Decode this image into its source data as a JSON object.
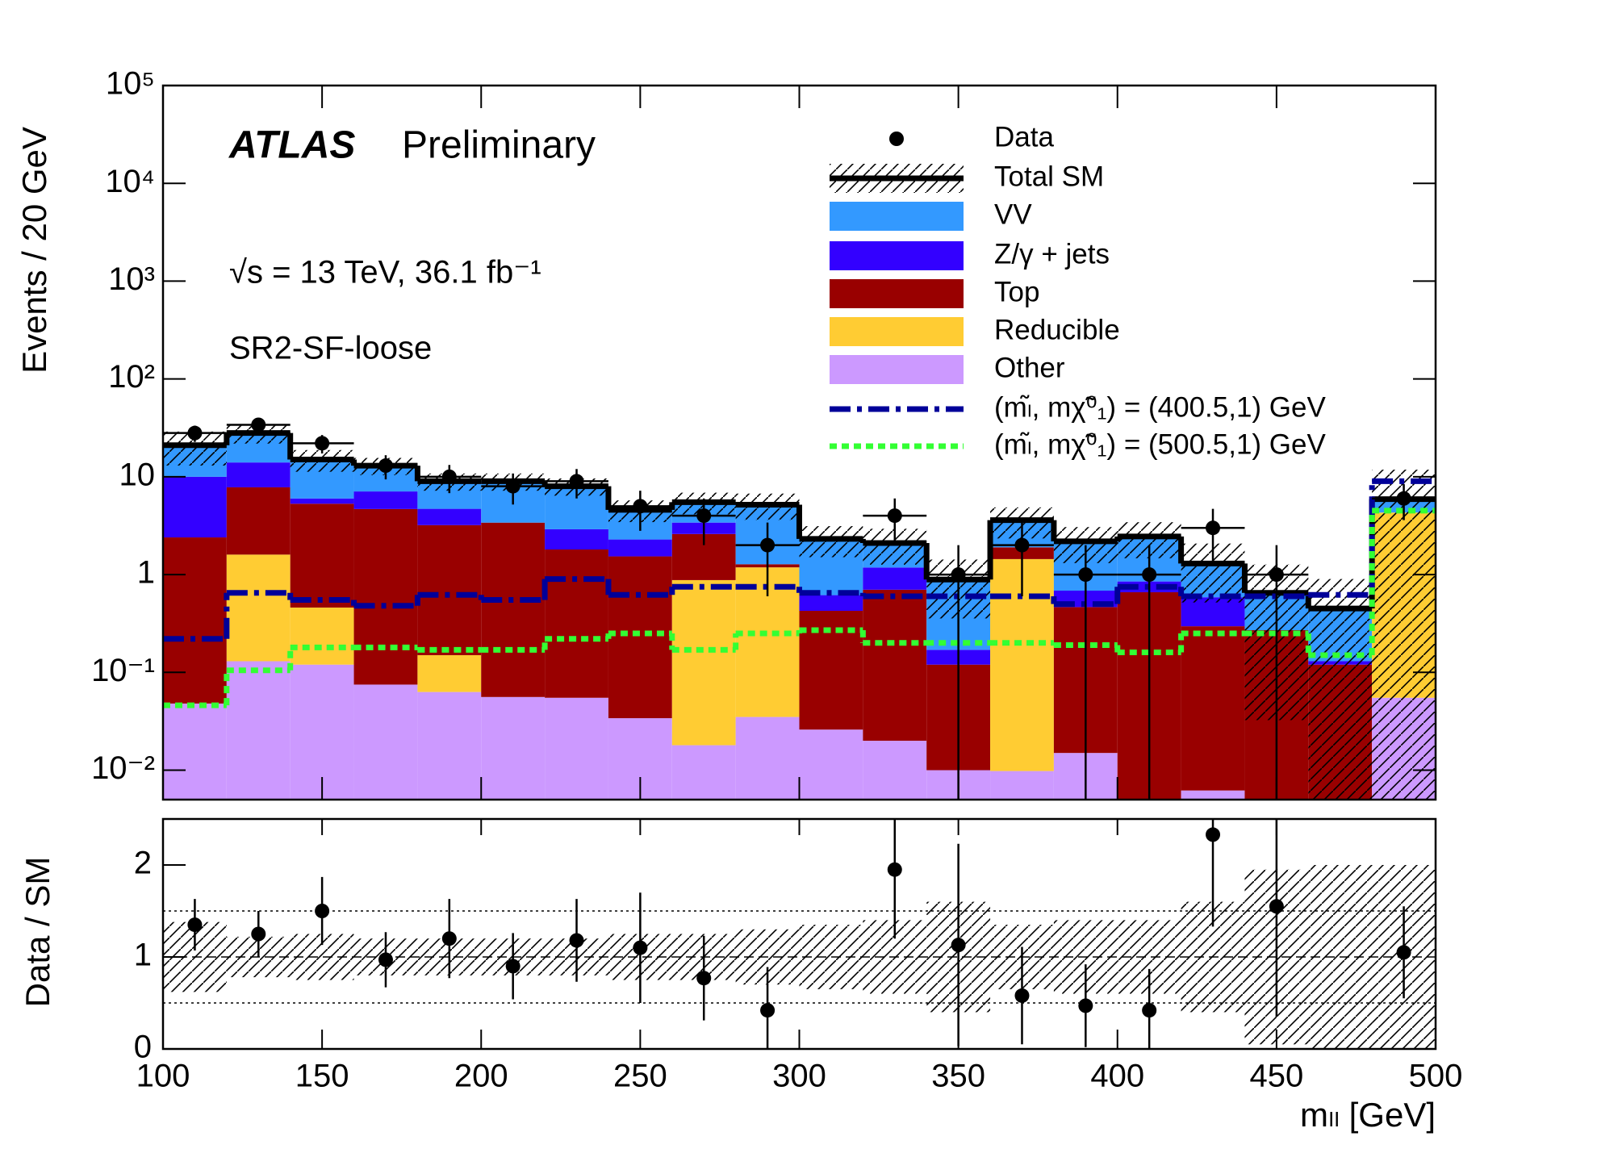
{
  "chart_data": [
    {
      "type": "stacked_histogram",
      "title": "ATLAS",
      "subtitle": "Preliminary",
      "annotations": [
        "√s = 13 TeV, 36.1 fb⁻¹",
        "SR2-SF-loose"
      ],
      "ylabel": "Events / 20 GeV",
      "log_y": true,
      "ylim": [
        0.005,
        100000
      ],
      "yticks": [
        {
          "value": 0.01,
          "label": "10⁻²"
        },
        {
          "value": 0.1,
          "label": "10⁻¹"
        },
        1,
        10,
        {
          "value": 100,
          "label": "10²"
        },
        {
          "value": 1000,
          "label": "10³"
        },
        {
          "value": 10000,
          "label": "10⁴"
        },
        {
          "value": 100000,
          "label": "10⁵"
        }
      ],
      "bins": [
        100,
        120,
        140,
        160,
        180,
        200,
        220,
        240,
        260,
        280,
        300,
        320,
        340,
        360,
        380,
        400,
        420,
        440,
        460,
        480,
        500
      ],
      "series": [
        {
          "name": "Other",
          "color": "#cc99ff",
          "values": [
            0.048,
            0.13,
            0.12,
            0.075,
            0.063,
            0.056,
            0.055,
            0.034,
            0.018,
            0.035,
            0.026,
            0.02,
            0.01,
            0.0098,
            0.015,
            0,
            0.0062,
            0,
            0,
            0.055
          ]
        },
        {
          "name": "Reducible",
          "color": "#ffcc33",
          "values": [
            0,
            1.47,
            0.34,
            0,
            0.087,
            0,
            0,
            0,
            0.86,
            1.15,
            0,
            0,
            0,
            1.43,
            0,
            0,
            0,
            0,
            0,
            4.25
          ]
        },
        {
          "name": "Top",
          "color": "#990000",
          "values": [
            2.35,
            6.2,
            4.84,
            4.6,
            3.05,
            3.34,
            1.75,
            1.5,
            1.72,
            0.09,
            0.4,
            0.68,
            0.11,
            0.46,
            0.45,
            0.66,
            0.29,
            0.27,
            0.12,
            0
          ]
        },
        {
          "name": "Z/γ + jets",
          "color": "#3300ff",
          "values": [
            7.6,
            6.2,
            0.7,
            2.4,
            1.5,
            0,
            1.1,
            0.75,
            0.8,
            0,
            0.19,
            0.48,
            0.05,
            0,
            0.22,
            0.19,
            0.29,
            0,
            0.01,
            0
          ]
        },
        {
          "name": "VV",
          "color": "#3399ff",
          "values": [
            11,
            14,
            9,
            5.9,
            4.3,
            5.6,
            5.1,
            2.3,
            2.1,
            3.9,
            1.7,
            0.92,
            0.72,
            1.7,
            1.5,
            1.6,
            0.71,
            0.38,
            0.32,
            1.6
          ]
        }
      ],
      "total": {
        "name": "Total SM",
        "color": "#000000"
      },
      "data": {
        "name": "Data",
        "color": "#000000",
        "values": [
          28,
          34,
          22,
          13,
          10,
          8,
          9,
          5,
          4,
          2,
          null,
          4,
          1,
          2,
          1,
          1,
          3,
          1,
          null,
          6
        ],
        "errors": [
          5.3,
          5.8,
          4.7,
          3.6,
          3.2,
          2.8,
          3,
          2.2,
          2,
          1.4,
          null,
          2,
          1,
          1.4,
          1,
          1,
          1.7,
          1,
          null,
          2.4
        ]
      },
      "signals": [
        {
          "name": "(mₗ̃, mχ̃⁰₁) = (400.5,1)  GeV",
          "color": "#000099",
          "style": "dashdot",
          "values": [
            0.22,
            0.65,
            0.55,
            0.48,
            0.62,
            0.55,
            0.9,
            0.62,
            0.75,
            0.75,
            0.65,
            0.6,
            0.6,
            0.6,
            0.5,
            0.75,
            0.6,
            0.6,
            0.62,
            9
          ]
        },
        {
          "name": "(mₗ̃, mχ̃⁰₁) = (500.5,1)  GeV",
          "color": "#33ff33",
          "style": "dotted",
          "values": [
            0.046,
            0.105,
            0.18,
            0.18,
            0.17,
            0.17,
            0.22,
            0.25,
            0.17,
            0.25,
            0.27,
            0.2,
            0.2,
            0.2,
            0.19,
            0.16,
            0.25,
            0.25,
            0.15,
            4.5
          ]
        }
      ]
    },
    {
      "type": "ratio",
      "ylabel": "Data / SM",
      "xlabel": "mₗₗ [GeV]",
      "xlim": [
        100,
        500
      ],
      "xticks": [
        100,
        150,
        200,
        250,
        300,
        350,
        400,
        450,
        500
      ],
      "ylim": [
        0,
        2.5
      ],
      "yticks": [
        0,
        1,
        2
      ],
      "reference_lines": [
        0.5,
        1,
        1.5
      ],
      "values": [
        1.35,
        1.25,
        1.5,
        0.97,
        1.2,
        0.9,
        1.18,
        1.1,
        0.77,
        0.42,
        null,
        1.95,
        1.13,
        0.58,
        0.47,
        0.42,
        2.33,
        1.55,
        null,
        1.05
      ],
      "errors": [
        0.28,
        0.25,
        0.37,
        0.3,
        0.43,
        0.36,
        0.45,
        0.6,
        0.46,
        0.47,
        null,
        0.75,
        1.1,
        0.53,
        0.45,
        0.45,
        1.0,
        1.2,
        null,
        0.5
      ],
      "uncertainty": [
        0.38,
        0.22,
        0.25,
        0.2,
        0.2,
        0.2,
        0.2,
        0.25,
        0.25,
        0.3,
        0.35,
        0.4,
        0.6,
        0.35,
        0.4,
        0.4,
        0.6,
        0.95,
        1.0,
        1.0
      ]
    }
  ]
}
